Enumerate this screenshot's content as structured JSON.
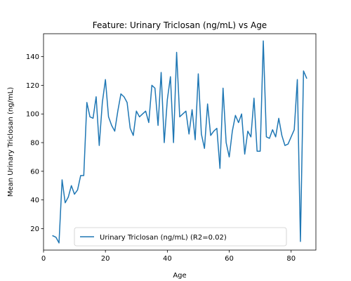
{
  "chart_data": {
    "type": "line",
    "title": "Feature: Urinary Triclosan (ng/mL) vs Age",
    "xlabel": "Age",
    "ylabel": "Mean Urinary Triclosan (ng/mL)",
    "xlim": [
      0,
      88
    ],
    "ylim": [
      5,
      156
    ],
    "x_ticks": [
      0,
      20,
      40,
      60,
      80
    ],
    "y_ticks": [
      20,
      40,
      60,
      80,
      100,
      120,
      140
    ],
    "grid": false,
    "legend": {
      "position": "lower center"
    },
    "series": [
      {
        "name": "Urinary Triclosan (ng/mL) (R2=0.02)",
        "color": "#1f77b4",
        "x": [
          3,
          4,
          5,
          6,
          7,
          8,
          9,
          10,
          11,
          12,
          13,
          14,
          15,
          16,
          17,
          18,
          19,
          20,
          21,
          22,
          23,
          24,
          25,
          26,
          27,
          28,
          29,
          30,
          31,
          32,
          33,
          34,
          35,
          36,
          37,
          38,
          39,
          40,
          41,
          42,
          43,
          44,
          45,
          46,
          47,
          48,
          49,
          50,
          51,
          52,
          53,
          54,
          55,
          56,
          57,
          58,
          59,
          60,
          61,
          62,
          63,
          64,
          65,
          66,
          67,
          68,
          69,
          70,
          71,
          72,
          73,
          74,
          75,
          76,
          77,
          78,
          79,
          80,
          81,
          82,
          83,
          84,
          85
        ],
        "y": [
          15,
          14,
          10,
          54,
          38,
          42,
          50,
          44,
          47,
          57,
          57,
          108,
          98,
          97,
          112,
          78,
          108,
          124,
          98,
          92,
          88,
          102,
          114,
          112,
          108,
          90,
          85,
          102,
          98,
          100,
          102,
          94,
          120,
          118,
          92,
          129,
          80,
          110,
          126,
          80,
          143,
          98,
          100,
          102,
          86,
          103,
          82,
          128,
          86,
          76,
          107,
          85,
          88,
          90,
          62,
          118,
          80,
          70,
          88,
          99,
          94,
          100,
          72,
          88,
          84,
          111,
          74,
          74,
          151,
          84,
          83,
          89,
          84,
          97,
          85,
          78,
          79,
          84,
          89,
          124,
          11,
          130,
          125
        ]
      }
    ]
  }
}
